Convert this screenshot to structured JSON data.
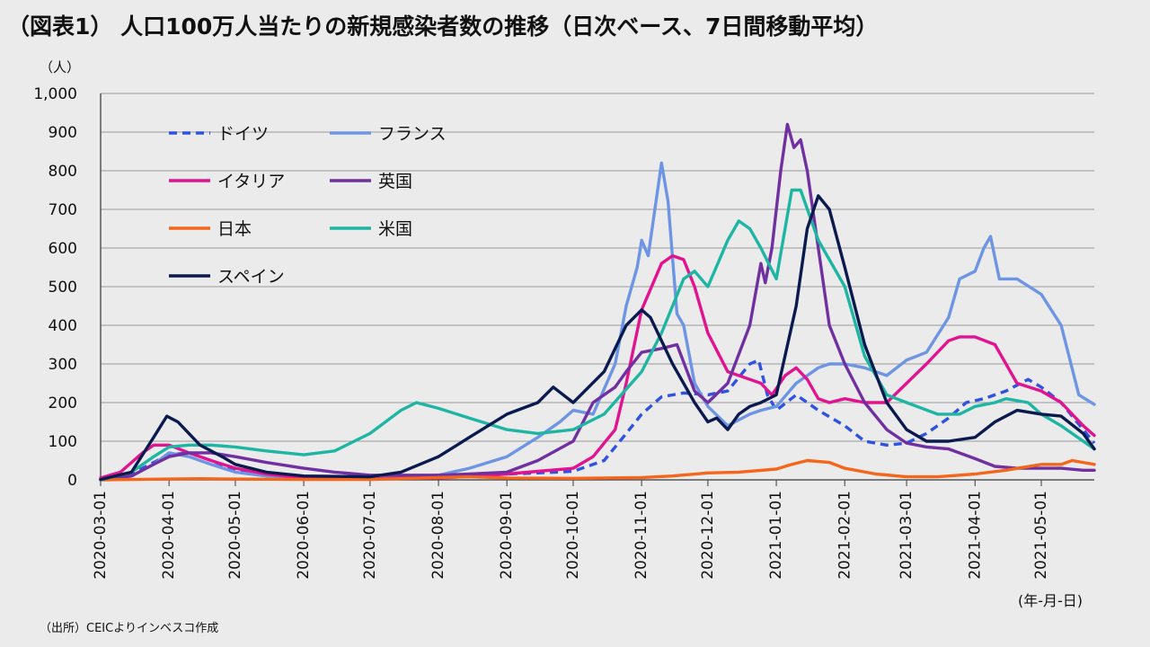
{
  "title": "（図表1） 人口100万人当たりの新規感染者数の推移（日次ベース、7日間移動平均）",
  "y_unit": "（人）",
  "x_unit": "(年-月-日)",
  "source": "（出所）CEICよりインベスコ作成",
  "chart_data": {
    "type": "line",
    "title": "（図表1） 人口100万人当たりの新規感染者数の推移（日次ベース、7日間移動平均）",
    "ylabel": "（人）",
    "xlabel": "(年-月-日)",
    "ylim": [
      0,
      1000
    ],
    "yticks": [
      0,
      100,
      200,
      300,
      400,
      500,
      600,
      700,
      800,
      900,
      1000
    ],
    "ytick_labels": [
      "0",
      "100",
      "200",
      "300",
      "400",
      "500",
      "600",
      "700",
      "800",
      "900",
      "1,000"
    ],
    "xlim": [
      "2020-03-01",
      "2021-05-25"
    ],
    "xticks": [
      "2020-03-01",
      "2020-04-01",
      "2020-05-01",
      "2020-06-01",
      "2020-07-01",
      "2020-08-01",
      "2020-09-01",
      "2020-10-01",
      "2020-11-01",
      "2020-12-01",
      "2021-01-01",
      "2021-02-01",
      "2021-03-01",
      "2021-04-01",
      "2021-05-01"
    ],
    "grid": true,
    "legend": "top-left",
    "series": [
      {
        "name": "ドイツ",
        "color": "#2f52e0",
        "dash": "dashed",
        "x": [
          "2020-03-01",
          "2020-03-15",
          "2020-03-25",
          "2020-04-01",
          "2020-04-10",
          "2020-04-20",
          "2020-05-01",
          "2020-05-15",
          "2020-06-01",
          "2020-07-01",
          "2020-08-01",
          "2020-08-15",
          "2020-09-01",
          "2020-09-15",
          "2020-10-01",
          "2020-10-15",
          "2020-10-25",
          "2020-11-01",
          "2020-11-10",
          "2020-11-20",
          "2020-12-01",
          "2020-12-10",
          "2020-12-20",
          "2020-12-24",
          "2020-12-28",
          "2021-01-01",
          "2021-01-10",
          "2021-01-20",
          "2021-02-01",
          "2021-02-10",
          "2021-02-20",
          "2021-03-01",
          "2021-03-10",
          "2021-03-20",
          "2021-03-28",
          "2021-04-05",
          "2021-04-15",
          "2021-04-25",
          "2021-05-01",
          "2021-05-10",
          "2021-05-20",
          "2021-05-25"
        ],
        "y": [
          2,
          15,
          45,
          65,
          70,
          50,
          25,
          12,
          5,
          5,
          8,
          12,
          15,
          18,
          22,
          50,
          120,
          170,
          215,
          225,
          220,
          230,
          300,
          310,
          220,
          180,
          220,
          180,
          140,
          100,
          90,
          95,
          120,
          160,
          200,
          210,
          230,
          260,
          240,
          200,
          130,
          95
        ]
      },
      {
        "name": "フランス",
        "color": "#6e95e3",
        "dash": "solid",
        "x": [
          "2020-03-01",
          "2020-03-15",
          "2020-03-25",
          "2020-04-01",
          "2020-04-10",
          "2020-04-20",
          "2020-05-01",
          "2020-05-15",
          "2020-06-01",
          "2020-07-01",
          "2020-07-15",
          "2020-08-01",
          "2020-08-15",
          "2020-09-01",
          "2020-09-15",
          "2020-09-25",
          "2020-10-01",
          "2020-10-10",
          "2020-10-20",
          "2020-10-25",
          "2020-10-30",
          "2020-11-01",
          "2020-11-04",
          "2020-11-07",
          "2020-11-10",
          "2020-11-13",
          "2020-11-17",
          "2020-11-20",
          "2020-11-25",
          "2020-12-01",
          "2020-12-10",
          "2020-12-20",
          "2020-12-25",
          "2021-01-01",
          "2021-01-10",
          "2021-01-20",
          "2021-01-25",
          "2021-02-01",
          "2021-02-10",
          "2021-02-20",
          "2021-03-01",
          "2021-03-10",
          "2021-03-20",
          "2021-03-25",
          "2021-04-01",
          "2021-04-05",
          "2021-04-08",
          "2021-04-12",
          "2021-04-20",
          "2021-05-01",
          "2021-05-10",
          "2021-05-18",
          "2021-05-25"
        ],
        "y": [
          0,
          10,
          40,
          70,
          60,
          40,
          20,
          10,
          5,
          5,
          8,
          12,
          30,
          60,
          110,
          150,
          180,
          170,
          300,
          450,
          550,
          620,
          580,
          700,
          820,
          720,
          430,
          400,
          250,
          190,
          140,
          170,
          180,
          190,
          250,
          290,
          300,
          300,
          290,
          270,
          310,
          330,
          420,
          520,
          540,
          600,
          630,
          520,
          520,
          480,
          400,
          220,
          195
        ]
      },
      {
        "name": "イタリア",
        "color": "#e2138e",
        "dash": "solid",
        "x": [
          "2020-03-01",
          "2020-03-10",
          "2020-03-20",
          "2020-03-25",
          "2020-04-01",
          "2020-04-10",
          "2020-04-20",
          "2020-05-01",
          "2020-05-15",
          "2020-06-01",
          "2020-07-01",
          "2020-08-01",
          "2020-08-20",
          "2020-09-01",
          "2020-09-15",
          "2020-10-01",
          "2020-10-10",
          "2020-10-20",
          "2020-10-25",
          "2020-11-01",
          "2020-11-10",
          "2020-11-15",
          "2020-11-20",
          "2020-11-25",
          "2020-12-01",
          "2020-12-10",
          "2020-12-20",
          "2020-12-25",
          "2020-12-30",
          "2021-01-05",
          "2021-01-10",
          "2021-01-15",
          "2021-01-20",
          "2021-01-25",
          "2021-02-01",
          "2021-02-10",
          "2021-02-20",
          "2021-03-01",
          "2021-03-10",
          "2021-03-20",
          "2021-03-25",
          "2021-04-01",
          "2021-04-10",
          "2021-04-20",
          "2021-05-01",
          "2021-05-10",
          "2021-05-20",
          "2021-05-25"
        ],
        "y": [
          5,
          20,
          70,
          90,
          90,
          70,
          50,
          30,
          15,
          5,
          3,
          5,
          10,
          15,
          22,
          30,
          60,
          130,
          250,
          440,
          560,
          580,
          570,
          500,
          380,
          280,
          260,
          250,
          220,
          270,
          290,
          260,
          210,
          200,
          210,
          200,
          200,
          250,
          300,
          360,
          370,
          370,
          350,
          250,
          230,
          200,
          140,
          115
        ]
      },
      {
        "name": "英国",
        "color": "#7030a0",
        "dash": "solid",
        "x": [
          "2020-03-01",
          "2020-03-15",
          "2020-03-25",
          "2020-04-01",
          "2020-04-10",
          "2020-04-20",
          "2020-05-01",
          "2020-05-15",
          "2020-06-01",
          "2020-06-15",
          "2020-07-01",
          "2020-08-01",
          "2020-08-15",
          "2020-09-01",
          "2020-09-15",
          "2020-10-01",
          "2020-10-10",
          "2020-10-20",
          "2020-10-25",
          "2020-11-01",
          "2020-11-10",
          "2020-11-17",
          "2020-11-25",
          "2020-12-01",
          "2020-12-10",
          "2020-12-20",
          "2020-12-25",
          "2020-12-27",
          "2020-12-30",
          "2021-01-03",
          "2021-01-06",
          "2021-01-09",
          "2021-01-12",
          "2021-01-15",
          "2021-01-20",
          "2021-01-25",
          "2021-02-01",
          "2021-02-10",
          "2021-02-20",
          "2021-03-01",
          "2021-03-10",
          "2021-03-20",
          "2021-04-01",
          "2021-04-10",
          "2021-04-20",
          "2021-05-01",
          "2021-05-10",
          "2021-05-20",
          "2021-05-25"
        ],
        "y": [
          0,
          10,
          40,
          60,
          70,
          70,
          60,
          45,
          30,
          20,
          12,
          12,
          15,
          20,
          50,
          100,
          200,
          240,
          280,
          330,
          340,
          350,
          230,
          200,
          250,
          400,
          560,
          510,
          600,
          800,
          920,
          860,
          880,
          800,
          600,
          400,
          300,
          200,
          130,
          95,
          85,
          80,
          55,
          35,
          30,
          30,
          30,
          25,
          25
        ]
      },
      {
        "name": "日本",
        "color": "#f4661b",
        "dash": "solid",
        "x": [
          "2020-03-01",
          "2020-04-01",
          "2020-04-15",
          "2020-05-01",
          "2020-06-01",
          "2020-07-01",
          "2020-08-01",
          "2020-08-15",
          "2020-09-01",
          "2020-10-01",
          "2020-11-01",
          "2020-11-15",
          "2020-12-01",
          "2020-12-15",
          "2021-01-01",
          "2021-01-08",
          "2021-01-15",
          "2021-01-25",
          "2021-02-01",
          "2021-02-15",
          "2021-03-01",
          "2021-03-15",
          "2021-03-25",
          "2021-04-01",
          "2021-04-15",
          "2021-05-01",
          "2021-05-10",
          "2021-05-15",
          "2021-05-25"
        ],
        "y": [
          0,
          2,
          3,
          2,
          1,
          1,
          6,
          8,
          5,
          4,
          6,
          10,
          18,
          20,
          28,
          40,
          50,
          45,
          30,
          15,
          8,
          8,
          12,
          15,
          25,
          40,
          40,
          50,
          40
        ]
      },
      {
        "name": "米国",
        "color": "#1fb5a3",
        "dash": "solid",
        "x": [
          "2020-03-01",
          "2020-03-15",
          "2020-03-25",
          "2020-04-01",
          "2020-04-10",
          "2020-04-20",
          "2020-05-01",
          "2020-05-15",
          "2020-06-01",
          "2020-06-15",
          "2020-07-01",
          "2020-07-15",
          "2020-07-22",
          "2020-08-01",
          "2020-08-15",
          "2020-09-01",
          "2020-09-15",
          "2020-10-01",
          "2020-10-15",
          "2020-11-01",
          "2020-11-10",
          "2020-11-20",
          "2020-11-25",
          "2020-12-01",
          "2020-12-10",
          "2020-12-15",
          "2020-12-20",
          "2020-12-25",
          "2021-01-01",
          "2021-01-08",
          "2021-01-12",
          "2021-01-20",
          "2021-02-01",
          "2021-02-10",
          "2021-02-20",
          "2021-03-01",
          "2021-03-15",
          "2021-03-25",
          "2021-04-01",
          "2021-04-10",
          "2021-04-15",
          "2021-04-25",
          "2021-05-01",
          "2021-05-10",
          "2021-05-20",
          "2021-05-25"
        ],
        "y": [
          0,
          20,
          60,
          85,
          90,
          90,
          85,
          75,
          65,
          75,
          120,
          180,
          200,
          185,
          160,
          130,
          120,
          130,
          170,
          280,
          380,
          520,
          540,
          500,
          620,
          670,
          650,
          600,
          520,
          750,
          750,
          620,
          500,
          320,
          220,
          200,
          170,
          170,
          190,
          200,
          210,
          200,
          170,
          140,
          100,
          80
        ]
      },
      {
        "name": "スペイン",
        "color": "#0b1a4e",
        "dash": "solid",
        "x": [
          "2020-03-01",
          "2020-03-15",
          "2020-03-25",
          "2020-03-31",
          "2020-04-05",
          "2020-04-15",
          "2020-04-25",
          "2020-05-01",
          "2020-05-15",
          "2020-06-01",
          "2020-07-01",
          "2020-07-15",
          "2020-08-01",
          "2020-08-15",
          "2020-09-01",
          "2020-09-15",
          "2020-09-22",
          "2020-10-01",
          "2020-10-15",
          "2020-10-25",
          "2020-11-01",
          "2020-11-05",
          "2020-11-15",
          "2020-11-25",
          "2020-12-01",
          "2020-12-05",
          "2020-12-10",
          "2020-12-15",
          "2020-12-20",
          "2020-12-25",
          "2021-01-01",
          "2021-01-10",
          "2021-01-15",
          "2021-01-20",
          "2021-01-25",
          "2021-02-01",
          "2021-02-10",
          "2021-02-20",
          "2021-03-01",
          "2021-03-10",
          "2021-03-20",
          "2021-04-01",
          "2021-04-10",
          "2021-04-20",
          "2021-05-01",
          "2021-05-10",
          "2021-05-20",
          "2021-05-25"
        ],
        "y": [
          1,
          20,
          110,
          165,
          150,
          90,
          60,
          40,
          20,
          10,
          8,
          20,
          60,
          110,
          170,
          200,
          240,
          200,
          280,
          400,
          440,
          420,
          300,
          200,
          150,
          160,
          130,
          170,
          190,
          200,
          220,
          450,
          650,
          735,
          700,
          550,
          350,
          200,
          130,
          100,
          100,
          110,
          150,
          180,
          170,
          165,
          120,
          80
        ]
      }
    ]
  }
}
